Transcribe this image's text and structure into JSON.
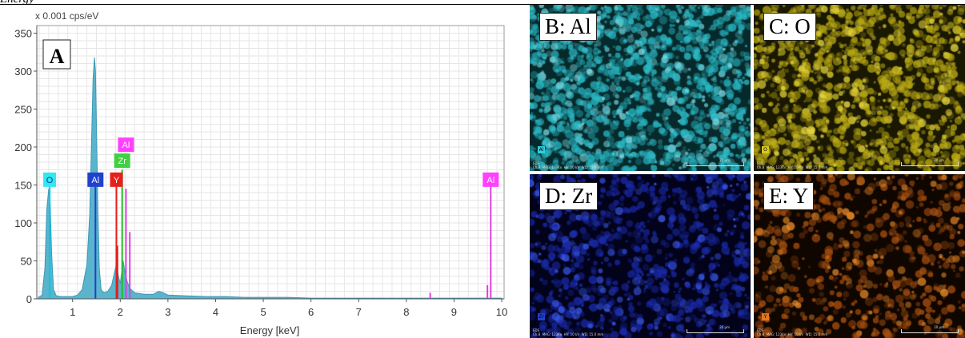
{
  "page": {
    "title": "Energy"
  },
  "chart_data": {
    "type": "line",
    "unit_label": "x 0.001 cps/eV",
    "xlabel": "Energy [keV]",
    "ylabel": "",
    "xlim": [
      0.25,
      10.05
    ],
    "ylim": [
      0,
      360
    ],
    "x_ticks": [
      1,
      2,
      3,
      4,
      5,
      6,
      7,
      8,
      9,
      10
    ],
    "y_ticks": [
      0,
      50,
      100,
      150,
      200,
      250,
      300,
      350
    ],
    "grid": true,
    "panel_label": "A",
    "series": [
      {
        "values_x": [
          0.28,
          0.36,
          0.42,
          0.46,
          0.5,
          0.53,
          0.56,
          0.6,
          0.66,
          0.75,
          0.85,
          1.0,
          1.1,
          1.2,
          1.3,
          1.36,
          1.4,
          1.43,
          1.46,
          1.48,
          1.5,
          1.53,
          1.56,
          1.6,
          1.66,
          1.74,
          1.82,
          1.88,
          1.92,
          1.96,
          2.0,
          2.04,
          2.06,
          2.1,
          2.15,
          2.2,
          2.3,
          2.5,
          2.7,
          2.8,
          2.9,
          3.0,
          3.4,
          3.8,
          4.2,
          4.6,
          5.0,
          5.5,
          6.0,
          6.5,
          7.0,
          7.5,
          8.0,
          8.5,
          9.0,
          9.5,
          10.0
        ],
        "values_y": [
          2,
          5,
          40,
          118,
          145,
          125,
          60,
          12,
          4,
          3,
          3,
          3,
          5,
          12,
          45,
          110,
          210,
          290,
          318,
          300,
          230,
          120,
          40,
          12,
          8,
          10,
          18,
          35,
          45,
          30,
          20,
          40,
          50,
          35,
          22,
          14,
          8,
          6,
          6,
          10,
          8,
          5,
          4,
          3,
          3,
          2,
          2,
          2,
          1,
          1,
          1,
          1,
          1,
          1,
          1,
          1,
          1
        ]
      }
    ],
    "element_lines": [
      {
        "x": 0.52,
        "y": 150,
        "color": "#00c8e8"
      },
      {
        "x": 1.48,
        "y": 150,
        "color": "#2040d0"
      },
      {
        "x": 1.92,
        "y": 150,
        "color": "#e8201a"
      },
      {
        "x": 1.94,
        "y": 70,
        "color": "#d02020"
      },
      {
        "x": 2.04,
        "y": 170,
        "color": "#20c020"
      },
      {
        "x": 2.12,
        "y": 145,
        "color": "#e040e0"
      },
      {
        "x": 2.2,
        "y": 88,
        "color": "#e040e0"
      },
      {
        "x": 8.5,
        "y": 8,
        "color": "#e040e0"
      },
      {
        "x": 9.7,
        "y": 18,
        "color": "#e040e0"
      },
      {
        "x": 9.77,
        "y": 150,
        "color": "#e040e0"
      }
    ],
    "element_badges": [
      {
        "label": "O",
        "x": 0.52,
        "y": 157,
        "bg": "#30e8f0",
        "fg": "#0038a0"
      },
      {
        "label": "Al",
        "x": 1.48,
        "y": 157,
        "bg": "#2040d0",
        "fg": "#ffffff"
      },
      {
        "label": "Y",
        "x": 1.92,
        "y": 157,
        "bg": "#e8201a",
        "fg": "#ffffff"
      },
      {
        "label": "Zr",
        "x": 2.04,
        "y": 182,
        "bg": "#40d040",
        "fg": "#ffffff"
      },
      {
        "label": "Al",
        "x": 2.12,
        "y": 203,
        "bg": "#ff40ff",
        "fg": "#ffffff"
      },
      {
        "label": "Al",
        "x": 9.77,
        "y": 157,
        "bg": "#ff40ff",
        "fg": "#ffffff"
      }
    ]
  },
  "maps": [
    {
      "label": "B: Al",
      "element": "Al",
      "colors": [
        "#062a2c",
        "#2ab8c4",
        "#7ad8e0"
      ],
      "badge_bg": "#30d0e0",
      "meta": "EDS\nCh.8  MAG: 1234x  HV: 10 kV  WD: 15.0 mm",
      "scale": "20 µm"
    },
    {
      "label": "C: O",
      "element": "O",
      "colors": [
        "#1a1800",
        "#b8a814",
        "#e8d840"
      ],
      "badge_bg": "#d8c820",
      "meta": "EDS\nCh.8  MAG: 1234x  HV: 10 kV  WD: 15.0 mm",
      "scale": "20 µm"
    },
    {
      "label": "D: Zr",
      "element": "Zr",
      "colors": [
        "#02021a",
        "#1a2aa8",
        "#3a58e8"
      ],
      "badge_bg": "#2040d0",
      "meta": "EDS\nCh.8  MAG: 1234x  HV: 10 kV  WD: 15.0 mm",
      "scale": "20 µm"
    },
    {
      "label": "E: Y",
      "element": "Y",
      "colors": [
        "#100600",
        "#a85010",
        "#e88c28"
      ],
      "badge_bg": "#e07820",
      "meta": "EDS\nCh.8  MAG: 1234x  HV: 10 kV  WD: 15.0 mm",
      "scale": "20 µm"
    }
  ]
}
